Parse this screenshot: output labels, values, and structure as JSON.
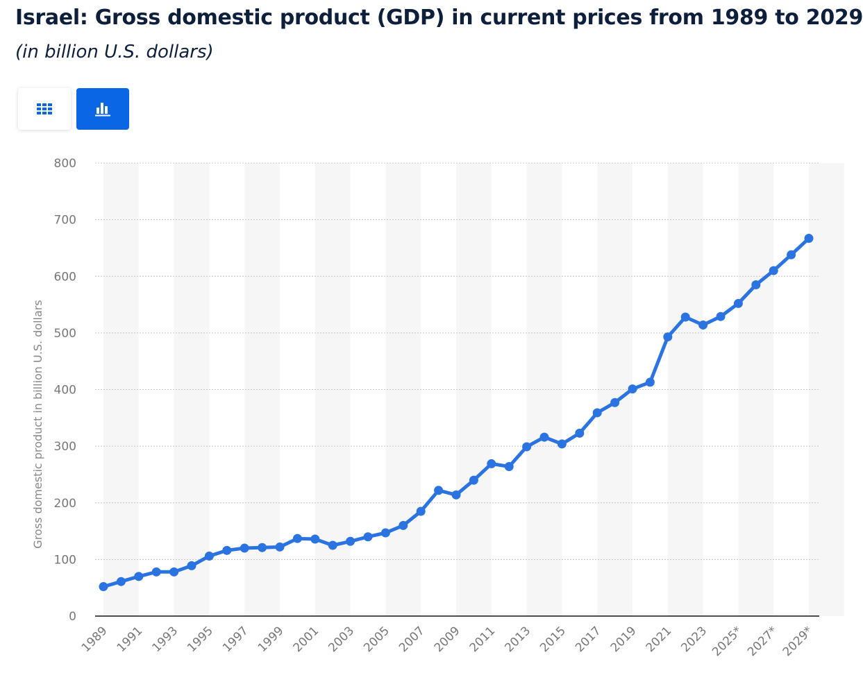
{
  "header": {
    "title": "Israel: Gross domestic product (GDP) in current prices from 1989 to 2029",
    "subtitle": "(in billion U.S. dollars)"
  },
  "view_toggle": {
    "table_icon": "table-grid-icon",
    "chart_icon": "bar-chart-icon",
    "active": "chart"
  },
  "colors": {
    "line": "#2a73e0",
    "accent": "#0a66e4",
    "band": "#f6f6f6",
    "grid": "#c4c4c4",
    "axis_text": "#777777"
  },
  "chart_data": {
    "type": "line",
    "title": "Israel: Gross domestic product (GDP) in current prices from 1989 to 2029",
    "subtitle": "(in billion U.S. dollars)",
    "xlabel": "",
    "ylabel": "Gross domestic product in billion U.S. dollars",
    "ylim": [
      0,
      800
    ],
    "yticks": [
      0,
      100,
      200,
      300,
      400,
      500,
      600,
      700,
      800
    ],
    "grid": true,
    "categories": [
      "1989",
      "1990",
      "1991",
      "1992",
      "1993",
      "1994",
      "1995",
      "1996",
      "1997",
      "1998",
      "1999",
      "2000",
      "2001",
      "2002",
      "2003",
      "2004",
      "2005",
      "2006",
      "2007",
      "2008",
      "2009",
      "2010",
      "2011",
      "2012",
      "2013",
      "2014",
      "2015",
      "2016",
      "2017",
      "2018",
      "2019",
      "2020",
      "2021",
      "2022",
      "2023",
      "2024",
      "2025*",
      "2026*",
      "2027*",
      "2028*",
      "2029*"
    ],
    "tick_labels": [
      "1989",
      "1991",
      "1993",
      "1995",
      "1997",
      "1999",
      "2001",
      "2003",
      "2005",
      "2007",
      "2009",
      "2011",
      "2013",
      "2015",
      "2017",
      "2019",
      "2021",
      "2023",
      "2025*",
      "2027*",
      "2029*"
    ],
    "series": [
      {
        "name": "GDP",
        "values": [
          52,
          61,
          70,
          78,
          78,
          89,
          106,
          116,
          120,
          121,
          122,
          137,
          136,
          125,
          132,
          140,
          147,
          160,
          185,
          222,
          214,
          240,
          269,
          264,
          299,
          316,
          304,
          323,
          359,
          377,
          401,
          413,
          493,
          528,
          514,
          529,
          552,
          585,
          610,
          638,
          667
        ]
      }
    ]
  }
}
